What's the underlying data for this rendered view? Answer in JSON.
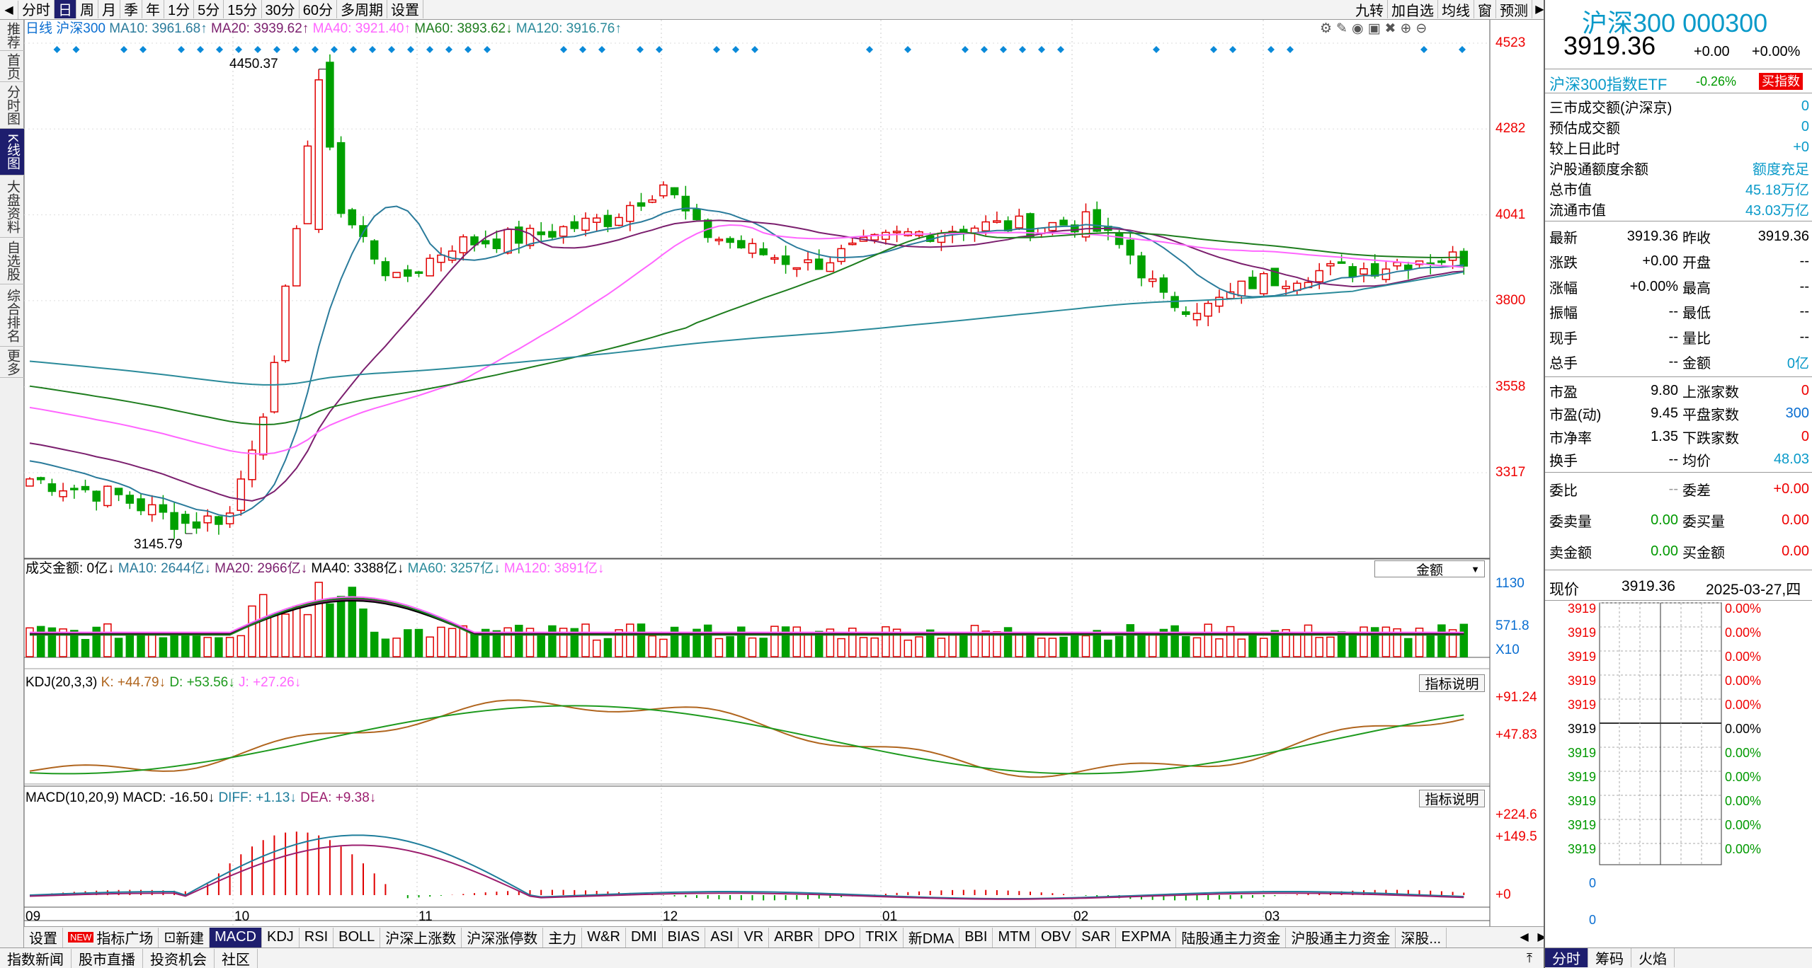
{
  "toolbar": {
    "items": [
      "分时",
      "日",
      "周",
      "月",
      "季",
      "年",
      "1分",
      "5分",
      "15分",
      "30分",
      "60分",
      "多周期",
      "设置"
    ],
    "right": [
      "九转",
      "加自选",
      "均线",
      "窗",
      "预测"
    ]
  },
  "leftnav": [
    "推荐",
    "首页",
    "分时图",
    "K线图",
    "大盘资料",
    "自选股",
    "综合排名",
    "更多"
  ],
  "chart_data": {
    "type": "candlestick",
    "main_legend": {
      "period": "日线",
      "name": "沪深300",
      "ma10": "MA10: 3961.68↑",
      "ma20": "MA20: 3939.62↑",
      "ma40": "MA40: 3921.40↑",
      "ma60": "MA60: 3893.62↓",
      "ma120": "MA120: 3916.76↑"
    },
    "price_axis": [
      "4523",
      "4282",
      "4041",
      "3800",
      "3558",
      "3317"
    ],
    "high_label": "4450.37",
    "low_label": "3145.79",
    "x_labels": [
      "09",
      "10",
      "11",
      "12",
      "01",
      "02",
      "03"
    ],
    "volume_legend": {
      "amount": "成交金额: 0亿↓",
      "ma10": "MA10: 2644亿↓",
      "ma20": "MA20: 2966亿↓",
      "ma40": "MA40: 3388亿↓",
      "ma60": "MA60: 3257亿↓",
      "ma120": "MA120: 3891亿↓"
    },
    "volume_select": "金额",
    "volume_axis": [
      "1130",
      "571.8",
      "X10"
    ],
    "kdj_legend": {
      "name": "KDJ(20,3,3)",
      "k": "K: +44.79↓",
      "d": "D: +53.56↓",
      "j": "J: +27.26↓"
    },
    "kdj_axis": [
      "+91.24",
      "+47.83"
    ],
    "macd_legend": {
      "name": "MACD(10,20,9)",
      "macd": "MACD: -16.50↓",
      "diff": "DIFF: +1.13↓",
      "dea": "DEA: +9.38↓"
    },
    "macd_axis": [
      "+224.6",
      "+149.5",
      "+0"
    ],
    "indicator_button": "指标说明",
    "colors": {
      "up": "#e00000",
      "down": "#00a000",
      "ma10": "#2a7b9b",
      "ma20": "#7b1f6e",
      "ma40": "#ff66ff",
      "ma60": "#1e7d1e",
      "ma120": "#2a8a9a",
      "k": "#b0651e",
      "d": "#1e9a1e",
      "diff": "#1e7d9b",
      "dea": "#9b1e6e"
    }
  },
  "tabs": [
    "设置",
    "指标广场",
    "新建",
    "MACD",
    "KDJ",
    "RSI",
    "BOLL",
    "沪深上涨数",
    "沪深涨停数",
    "主力",
    "W&R",
    "DMI",
    "BIAS",
    "ASI",
    "VR",
    "ARBR",
    "DPO",
    "TRIX",
    "新DMA",
    "BBI",
    "MTM",
    "OBV",
    "SAR",
    "EXPMA",
    "陆股通主力资金",
    "沪股通主力资金",
    "深股..."
  ],
  "tab_new_badge": "NEW",
  "bottombar": [
    "指数新闻",
    "股市直播",
    "投资机会",
    "社区"
  ],
  "panel": {
    "title": "沪深300 000300",
    "price": "3919.36",
    "change": "+0.00",
    "change_pct": "+0.00%",
    "etf": "沪深300指数ETF",
    "etf_change": "-0.26%",
    "etf_button": "买指数",
    "stats": [
      {
        "label": "三市成交额(沪深京)",
        "value": "0"
      },
      {
        "label": "预估成交额",
        "value": "0"
      },
      {
        "label": "较上日此时",
        "value": "+0"
      },
      {
        "label": "沪股通额度余额",
        "value": "额度充足"
      },
      {
        "label": "总市值",
        "value": "45.18万亿"
      },
      {
        "label": "流通市值",
        "value": "43.03万亿"
      }
    ],
    "quote": [
      [
        "最新",
        "3919.36",
        "昨收",
        "3919.36"
      ],
      [
        "涨跌",
        "+0.00",
        "开盘",
        "--"
      ],
      [
        "涨幅",
        "+0.00%",
        "最高",
        "--"
      ],
      [
        "振幅",
        "--",
        "最低",
        "--"
      ],
      [
        "现手",
        "--",
        "量比",
        "--"
      ],
      [
        "总手",
        "--",
        "金额",
        "0亿"
      ]
    ],
    "valuation": [
      [
        "市盈",
        "9.80",
        "上涨家数",
        "0"
      ],
      [
        "市盈(动)",
        "9.45",
        "平盘家数",
        "300"
      ],
      [
        "市净率",
        "1.35",
        "下跌家数",
        "0"
      ],
      [
        "换手",
        "--",
        "均价",
        "48.03"
      ]
    ],
    "order": [
      [
        "委比",
        "--",
        "委差",
        "+0.00"
      ],
      [
        "委卖量",
        "0.00",
        "委买量",
        "0.00"
      ],
      [
        "卖金额",
        "0.00",
        "买金额",
        "0.00"
      ]
    ],
    "current_label": "现价",
    "current_price": "3919.36",
    "current_date": "2025-03-27,四",
    "ladder_prices": [
      "3919",
      "3919",
      "3919",
      "3919",
      "3919",
      "3919",
      "3919",
      "3919",
      "3919",
      "3919",
      "3919"
    ],
    "ladder_pcts": [
      "0.00%",
      "0.00%",
      "0.00%",
      "0.00%",
      "0.00%",
      "0.00%",
      "0.00%",
      "0.00%",
      "0.00%",
      "0.00%",
      "0.00%"
    ],
    "ladder_zero": [
      "0",
      "0"
    ],
    "bottom_tabs": [
      "分时",
      "筹码",
      "火焰"
    ]
  }
}
